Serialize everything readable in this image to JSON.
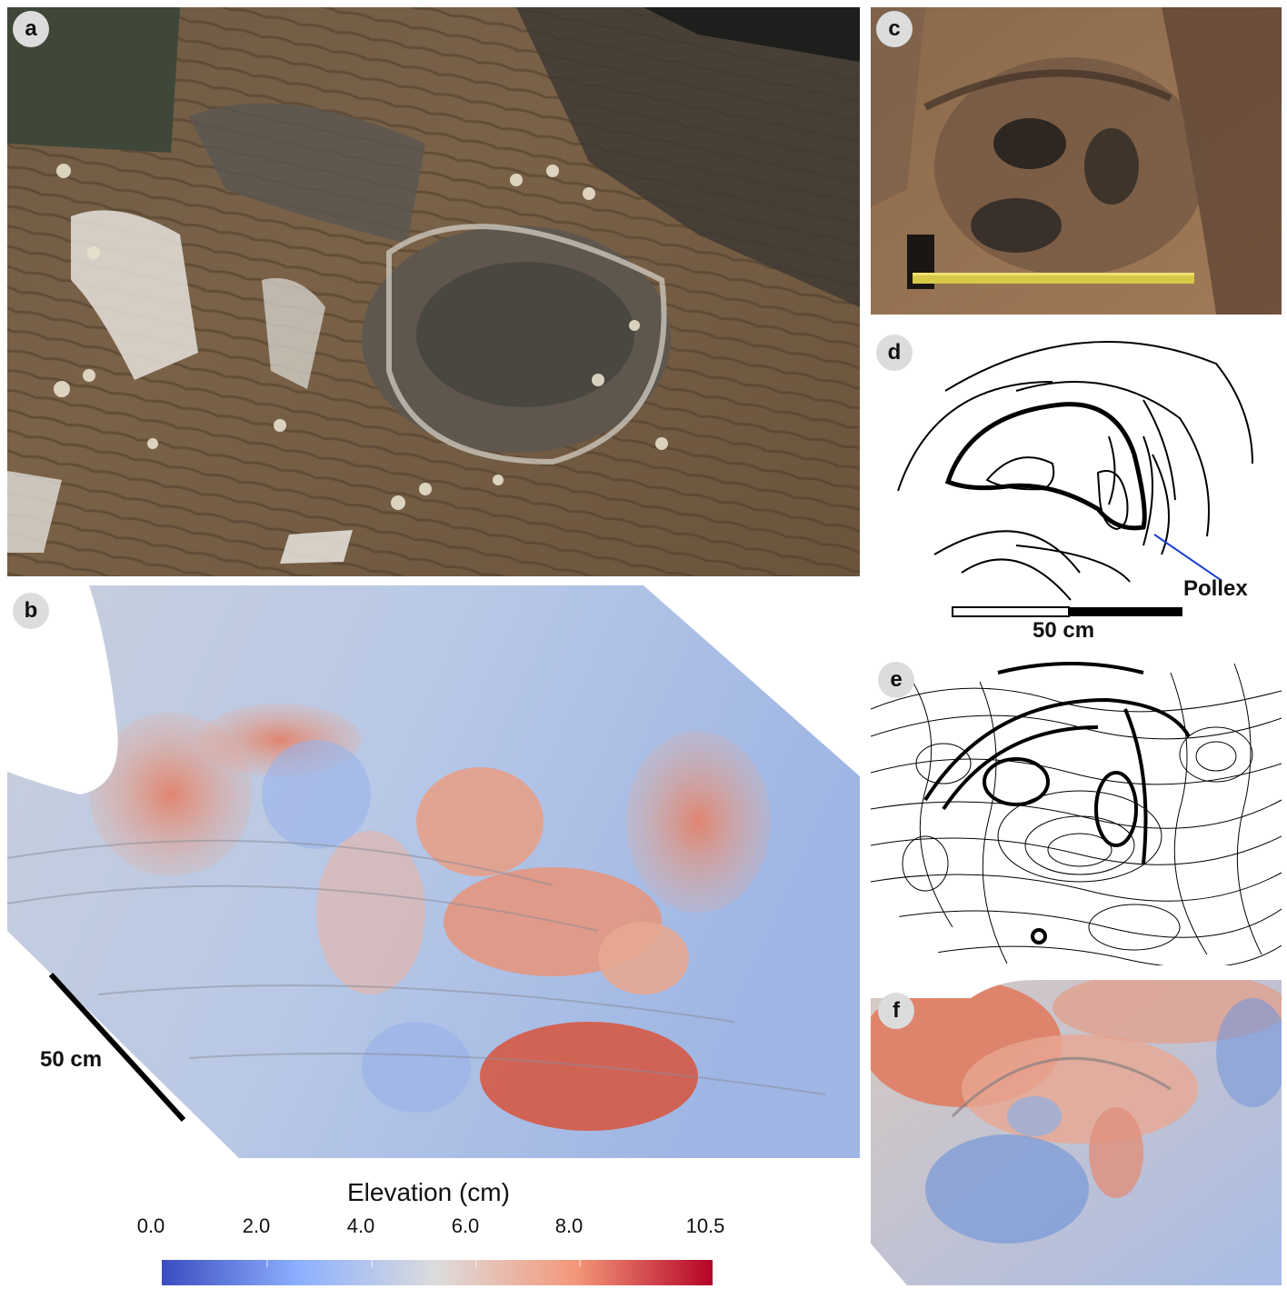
{
  "figure": {
    "panels": [
      {
        "id": "a",
        "label": "a",
        "content": "field photograph of large track with surrounding sediment"
      },
      {
        "id": "b",
        "label": "b",
        "content": "false-colour elevation model"
      },
      {
        "id": "c",
        "label": "c",
        "content": "field photograph with measuring tape"
      },
      {
        "id": "d",
        "label": "d",
        "content": "outline drawing"
      },
      {
        "id": "e",
        "label": "e",
        "content": "contour map"
      },
      {
        "id": "f",
        "label": "f",
        "content": "false-colour elevation model close-up"
      }
    ],
    "scale_b": "50 cm",
    "scale_d": "50 cm",
    "annotation_d": "Pollex",
    "colorbar": {
      "title": "Elevation (cm)",
      "ticks": [
        "0.0",
        "2.0",
        "4.0",
        "6.0",
        "8.0",
        "10.5"
      ],
      "colors": [
        "#3b4cc0",
        "#8db0fe",
        "#dddcdc",
        "#f4987a",
        "#b40426"
      ]
    }
  }
}
